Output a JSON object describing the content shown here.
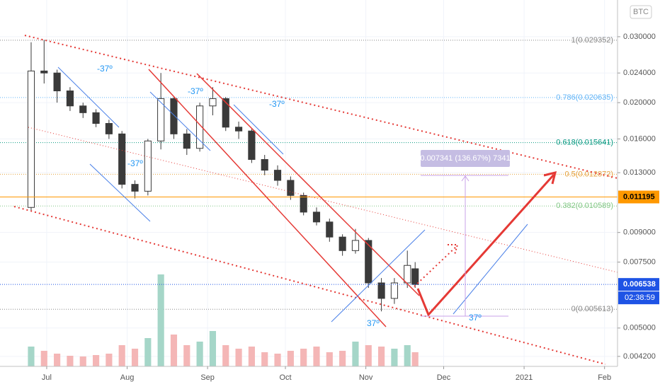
{
  "chart_data": {
    "type": "candlestick",
    "symbol": "BTC",
    "log_scale": true,
    "x": [
      "2020-06-25",
      "2020-06-30",
      "2020-07-05",
      "2020-07-10",
      "2020-07-15",
      "2020-07-20",
      "2020-07-25",
      "2020-07-30",
      "2020-08-04",
      "2020-08-09",
      "2020-08-14",
      "2020-08-19",
      "2020-08-24",
      "2020-08-29",
      "2020-09-03",
      "2020-09-08",
      "2020-09-13",
      "2020-09-18",
      "2020-09-23",
      "2020-09-28",
      "2020-10-03",
      "2020-10-08",
      "2020-10-13",
      "2020-10-18",
      "2020-10-23",
      "2020-10-28",
      "2020-11-02",
      "2020-11-07",
      "2020-11-12",
      "2020-11-17",
      "2020-11-20"
    ],
    "open": [
      0.0105,
      0.0243,
      0.024,
      0.0215,
      0.0196,
      0.0188,
      0.0176,
      0.0165,
      0.0121,
      0.0116,
      0.0158,
      0.0205,
      0.0165,
      0.0151,
      0.0196,
      0.0205,
      0.0172,
      0.0168,
      0.0141,
      0.0132,
      0.0124,
      0.0113,
      0.0102,
      0.0096,
      0.00875,
      0.00805,
      0.00857,
      0.0066,
      0.006,
      0.0066,
      0.0072
    ],
    "high": [
      0.029,
      0.0294,
      0.0245,
      0.022,
      0.02,
      0.0192,
      0.018,
      0.0168,
      0.0124,
      0.016,
      0.024,
      0.0208,
      0.017,
      0.02,
      0.022,
      0.0207,
      0.0178,
      0.017,
      0.0145,
      0.0136,
      0.0127,
      0.0115,
      0.0105,
      0.0098,
      0.0089,
      0.0092,
      0.0087,
      0.0068,
      0.0068,
      0.00805,
      0.0075
    ],
    "low": [
      0.0103,
      0.0225,
      0.02,
      0.019,
      0.0182,
      0.0172,
      0.016,
      0.0118,
      0.0111,
      0.0113,
      0.015,
      0.016,
      0.0145,
      0.0148,
      0.0185,
      0.0168,
      0.016,
      0.0138,
      0.0128,
      0.012,
      0.011,
      0.01,
      0.0094,
      0.0085,
      0.0078,
      0.0079,
      0.0064,
      0.00554,
      0.0058,
      0.0064,
      0.0064
    ],
    "close": [
      0.0243,
      0.024,
      0.0215,
      0.0196,
      0.0188,
      0.0176,
      0.0165,
      0.0121,
      0.0116,
      0.0158,
      0.0205,
      0.0165,
      0.0151,
      0.0196,
      0.0205,
      0.0172,
      0.0168,
      0.0141,
      0.0132,
      0.0124,
      0.0113,
      0.0102,
      0.0096,
      0.00875,
      0.00805,
      0.00857,
      0.0066,
      0.006,
      0.0066,
      0.00735,
      0.006538
    ],
    "volume": [
      28,
      22,
      18,
      15,
      14,
      16,
      18,
      30,
      25,
      40,
      130,
      45,
      30,
      35,
      50,
      30,
      25,
      28,
      20,
      18,
      22,
      25,
      28,
      20,
      22,
      35,
      30,
      28,
      25,
      30,
      20
    ],
    "up_color": "#ffffff",
    "down_color": "#3a3a3a",
    "volume_color": "#a5d6c8",
    "volume_down_color": "#f4b6b6",
    "xlim": [
      "2020-06-13",
      "2021-02-06"
    ],
    "xticks": [
      {
        "value": "2020-07-01",
        "label": "Jul"
      },
      {
        "value": "2020-08-01",
        "label": "Aug"
      },
      {
        "value": "2020-09-01",
        "label": "Sep"
      },
      {
        "value": "2020-10-01",
        "label": "Oct"
      },
      {
        "value": "2020-11-01",
        "label": "Nov"
      },
      {
        "value": "2020-12-01",
        "label": "Dec"
      },
      {
        "value": "2021-01-01",
        "label": "2021"
      },
      {
        "value": "2021-02-01",
        "label": "Feb"
      }
    ],
    "ylim": [
      0.00395,
      0.0376
    ],
    "yticks": [
      {
        "value": 0.03,
        "label": "0.030000"
      },
      {
        "value": 0.024,
        "label": "0.024000"
      },
      {
        "value": 0.02,
        "label": "0.020000"
      },
      {
        "value": 0.016,
        "label": "0.016000"
      },
      {
        "value": 0.013,
        "label": "0.013000"
      },
      {
        "value": 0.009,
        "label": "0.009000"
      },
      {
        "value": 0.0075,
        "label": "0.007500"
      },
      {
        "value": 0.005,
        "label": "0.005000"
      },
      {
        "value": 0.0042,
        "label": "0.004200"
      }
    ],
    "fib_levels": [
      {
        "label": "1(0.029352)",
        "value": 0.029352,
        "color": "#888888"
      },
      {
        "label": "0.786(0.020635)",
        "value": 0.020635,
        "color": "#64b5f6"
      },
      {
        "label": "0.618(0.015641)",
        "value": 0.015641,
        "color": "#089981"
      },
      {
        "label": "0.5(0.012872)",
        "value": 0.012872,
        "color": "#e6a23c"
      },
      {
        "label": "0.382(0.010589)",
        "value": 0.010589,
        "color": "#81c784"
      },
      {
        "label": "0(0.005613)",
        "value": 0.005613,
        "color": "#888888"
      }
    ],
    "price_tags": [
      {
        "value": 0.011195,
        "color": "#ff9800",
        "text_color": "#000000"
      },
      {
        "value": 0.006538,
        "color": "#1e53e5",
        "text_color": "#ffffff"
      }
    ],
    "countdown": "02:38:59",
    "measure_label": "0.007341 (136.67%) 7341",
    "angle_labels": [
      "-37º",
      "-37º",
      "-37º",
      "-37º",
      "37º",
      "37º"
    ]
  }
}
